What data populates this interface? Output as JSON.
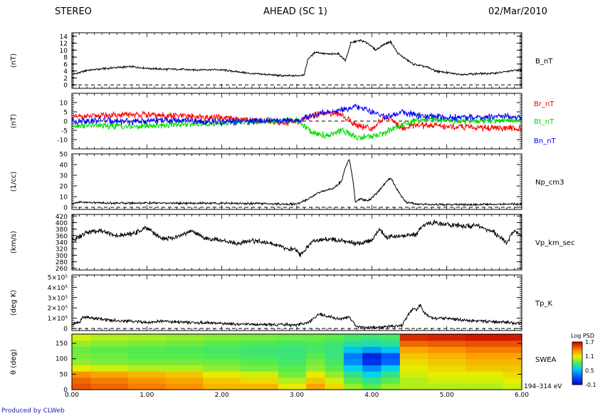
{
  "header": {
    "left": "STEREO",
    "center": "AHEAD (SC 1)",
    "right": "02/Mar/2010"
  },
  "footer": "Produced by CLWeb",
  "x_axis": {
    "ticks": [
      "0.00",
      "1.00",
      "2.00",
      "3.00",
      "4.00",
      "5.00",
      "6.00"
    ],
    "min": 0,
    "max": 6
  },
  "chart_data": [
    {
      "type": "line",
      "panel": "B",
      "ylabel": "(nT)",
      "ylim": [
        -1,
        15
      ],
      "yticks": [
        "0",
        "2",
        "4",
        "6",
        "8",
        "10",
        "12",
        "14"
      ],
      "ytick_values": [
        0,
        2,
        4,
        6,
        8,
        10,
        12,
        14
      ],
      "dashed_zero": true,
      "series": [
        {
          "name": "B_nT",
          "color": "#000000",
          "x": [
            0.0,
            0.1,
            0.2,
            0.4,
            0.6,
            0.8,
            1.0,
            1.2,
            1.4,
            1.6,
            1.8,
            2.0,
            2.2,
            2.4,
            2.6,
            2.8,
            3.0,
            3.1,
            3.15,
            3.25,
            3.35,
            3.45,
            3.55,
            3.65,
            3.72,
            3.78,
            3.85,
            3.95,
            4.05,
            4.15,
            4.25,
            4.35,
            4.45,
            4.55,
            4.65,
            4.75,
            4.85,
            5.0,
            5.2,
            5.4,
            5.6,
            5.8,
            6.0
          ],
          "values": [
            3.0,
            3.5,
            4.2,
            4.6,
            5.0,
            5.2,
            4.8,
            4.5,
            4.5,
            4.3,
            4.4,
            4.3,
            3.8,
            3.2,
            3.0,
            2.6,
            2.6,
            3.0,
            7.5,
            9.5,
            9.0,
            8.8,
            9.0,
            7.0,
            12.0,
            12.5,
            12.8,
            12.0,
            10.0,
            11.5,
            12.5,
            9.0,
            7.5,
            6.0,
            5.5,
            5.0,
            4.0,
            3.5,
            3.0,
            3.2,
            3.3,
            3.8,
            4.5
          ]
        }
      ]
    },
    {
      "type": "line",
      "panel": "Bvec",
      "ylabel": "(nT)",
      "ylim": [
        -15,
        15
      ],
      "yticks": [
        "-10",
        "-5",
        "0",
        "5",
        "10"
      ],
      "ytick_values": [
        -10,
        -5,
        0,
        5,
        10
      ],
      "dashed_zero": true,
      "series": [
        {
          "name": "Br_nT",
          "color": "#ff0000",
          "x": [
            0.0,
            0.4,
            0.8,
            1.2,
            1.6,
            2.0,
            2.4,
            2.8,
            3.0,
            3.2,
            3.4,
            3.6,
            3.8,
            4.0,
            4.2,
            4.4,
            4.6,
            4.8,
            5.0,
            5.4,
            5.8,
            6.0
          ],
          "values": [
            2.0,
            3.0,
            3.5,
            3.0,
            2.5,
            1.5,
            0.5,
            -0.5,
            -1.0,
            3.0,
            5.0,
            3.0,
            -2.0,
            -4.0,
            3.0,
            -4.0,
            -2.0,
            -2.5,
            -3.0,
            -3.5,
            -3.8,
            -4.0
          ]
        },
        {
          "name": "Bt_nT",
          "color": "#00dd00",
          "x": [
            0.0,
            0.4,
            0.8,
            1.2,
            1.6,
            2.0,
            2.4,
            2.8,
            3.0,
            3.2,
            3.4,
            3.6,
            3.8,
            4.0,
            4.2,
            4.4,
            4.6,
            4.8,
            5.0,
            5.4,
            5.8,
            6.0
          ],
          "values": [
            -2.0,
            -2.5,
            -3.0,
            -2.0,
            -1.5,
            -1.0,
            -0.5,
            0.0,
            0.5,
            -6.0,
            -8.0,
            -5.0,
            -9.0,
            -8.0,
            -6.0,
            -2.0,
            0.5,
            0.8,
            0.5,
            0.0,
            0.5,
            0.0
          ]
        },
        {
          "name": "Bn_nT",
          "color": "#0000ff",
          "x": [
            0.0,
            0.4,
            0.8,
            1.2,
            1.6,
            2.0,
            2.4,
            2.8,
            3.0,
            3.2,
            3.4,
            3.6,
            3.8,
            4.0,
            4.2,
            4.4,
            4.6,
            4.8,
            5.0,
            5.4,
            5.8,
            6.0
          ],
          "values": [
            0.0,
            0.5,
            -0.5,
            0.5,
            0.0,
            -0.5,
            0.0,
            0.5,
            0.0,
            3.0,
            5.0,
            6.0,
            8.0,
            5.0,
            2.0,
            5.0,
            3.0,
            2.5,
            2.0,
            2.0,
            2.5,
            2.0
          ]
        }
      ]
    },
    {
      "type": "line",
      "panel": "Np",
      "ylabel": "(1/cc)",
      "ylim": [
        -2,
        50
      ],
      "yticks": [
        "0",
        "10",
        "20",
        "30",
        "40",
        "50"
      ],
      "ytick_values": [
        0,
        10,
        20,
        30,
        40,
        50
      ],
      "dashed_zero": true,
      "series": [
        {
          "name": "Np_cm3",
          "color": "#000000",
          "x": [
            0.0,
            0.1,
            0.2,
            0.5,
            1.0,
            1.5,
            2.0,
            2.5,
            2.9,
            3.0,
            3.1,
            3.2,
            3.3,
            3.4,
            3.5,
            3.6,
            3.65,
            3.7,
            3.75,
            3.78,
            3.85,
            3.95,
            4.05,
            4.15,
            4.25,
            4.35,
            4.45,
            4.6,
            4.8,
            5.0,
            5.5,
            6.0
          ],
          "values": [
            3.0,
            5.0,
            4.5,
            4.0,
            4.0,
            3.8,
            3.8,
            3.5,
            3.0,
            3.0,
            6.0,
            10.0,
            14.0,
            16.0,
            18.0,
            25.0,
            38.0,
            45.0,
            25.0,
            5.0,
            8.0,
            6.0,
            12.0,
            20.0,
            28.0,
            15.0,
            5.0,
            3.0,
            2.5,
            2.5,
            2.8,
            3.0
          ]
        }
      ]
    },
    {
      "type": "line",
      "panel": "Vp",
      "ylabel": "(km/s)",
      "ylim": [
        255,
        425
      ],
      "yticks": [
        "260",
        "280",
        "300",
        "320",
        "340",
        "360",
        "380",
        "400",
        "420"
      ],
      "ytick_values": [
        260,
        280,
        300,
        320,
        340,
        360,
        380,
        400,
        420
      ],
      "dashed_zero": false,
      "series": [
        {
          "name": "Vp_km_sec",
          "color": "#000000",
          "x": [
            0.0,
            0.1,
            0.2,
            0.4,
            0.6,
            0.8,
            1.0,
            1.2,
            1.4,
            1.6,
            1.8,
            2.0,
            2.2,
            2.4,
            2.6,
            2.8,
            3.0,
            3.05,
            3.2,
            3.4,
            3.6,
            3.8,
            4.0,
            4.1,
            4.2,
            4.4,
            4.6,
            4.7,
            4.8,
            5.0,
            5.2,
            5.4,
            5.6,
            5.8,
            5.9,
            6.0
          ],
          "values": [
            345,
            355,
            370,
            375,
            360,
            365,
            385,
            350,
            355,
            375,
            350,
            345,
            335,
            345,
            340,
            325,
            315,
            300,
            340,
            350,
            345,
            335,
            345,
            380,
            355,
            360,
            365,
            395,
            400,
            395,
            390,
            390,
            375,
            340,
            375,
            360
          ]
        }
      ]
    },
    {
      "type": "line",
      "panel": "Tp",
      "ylabel": "(deg K)",
      "ylim": [
        -20000,
        520000
      ],
      "yticks": [
        "0",
        "1×10⁵",
        "2×10⁵",
        "3×10⁵",
        "4×10⁵",
        "5×10⁵"
      ],
      "ytick_values": [
        0,
        100000,
        200000,
        300000,
        400000,
        500000
      ],
      "dashed_zero": true,
      "series": [
        {
          "name": "Tp_K",
          "color": "#000000",
          "x": [
            0.0,
            0.1,
            0.15,
            0.3,
            0.5,
            0.8,
            1.0,
            1.2,
            1.5,
            1.8,
            2.0,
            2.3,
            2.6,
            2.9,
            3.1,
            3.2,
            3.3,
            3.4,
            3.5,
            3.6,
            3.7,
            3.75,
            3.8,
            3.9,
            4.0,
            4.2,
            4.4,
            4.5,
            4.55,
            4.6,
            4.65,
            4.7,
            4.8,
            5.0,
            5.2,
            5.5,
            5.8,
            6.0
          ],
          "values": [
            40000,
            60000,
            110000,
            100000,
            80000,
            70000,
            60000,
            70000,
            60000,
            55000,
            50000,
            40000,
            40000,
            35000,
            45000,
            80000,
            140000,
            120000,
            100000,
            90000,
            110000,
            60000,
            15000,
            10000,
            10000,
            15000,
            30000,
            150000,
            200000,
            180000,
            230000,
            150000,
            100000,
            100000,
            80000,
            70000,
            60000,
            50000
          ]
        }
      ]
    },
    {
      "type": "heatmap",
      "panel": "SWEA",
      "ylabel": "θ (deg)",
      "ylim": [
        0,
        180
      ],
      "yticks": [
        "0",
        "50",
        "100",
        "150"
      ],
      "ytick_values": [
        0,
        50,
        100,
        150
      ],
      "label": "SWEA",
      "energy_label": "194–314 eV",
      "colorbar": {
        "title": "Log PSD",
        "min": -0.1,
        "max": 1.7,
        "ticks": [
          "1.7",
          "1.1",
          "0.5",
          "-0.1"
        ],
        "tick_values": [
          1.7,
          1.1,
          0.5,
          -0.1
        ]
      },
      "x": [
        0.0,
        0.5,
        1.0,
        1.5,
        2.0,
        2.5,
        3.0,
        3.25,
        3.5,
        3.75,
        4.0,
        4.25,
        4.5,
        5.0,
        5.5,
        6.0
      ],
      "theta": [
        10,
        30,
        50,
        70,
        90,
        110,
        130,
        150,
        170
      ],
      "values": [
        [
          1.5,
          1.45,
          1.4,
          1.35,
          1.25,
          1.25,
          1.1,
          1.3,
          1.15,
          0.95,
          0.85,
          0.95,
          1.0,
          1.0,
          1.0,
          1.05
        ],
        [
          1.45,
          1.4,
          1.35,
          1.3,
          1.2,
          1.15,
          1.0,
          1.2,
          1.05,
          0.85,
          0.75,
          0.85,
          1.0,
          1.05,
          1.05,
          1.1
        ],
        [
          1.35,
          1.3,
          1.25,
          1.2,
          1.1,
          1.05,
          0.9,
          1.1,
          0.95,
          0.75,
          0.6,
          0.75,
          1.05,
          1.1,
          1.1,
          1.15
        ],
        [
          1.1,
          1.05,
          1.0,
          1.0,
          0.95,
          0.9,
          0.85,
          0.95,
          0.85,
          0.6,
          0.4,
          0.6,
          1.1,
          1.15,
          1.2,
          1.2
        ],
        [
          0.95,
          0.92,
          0.9,
          0.9,
          0.88,
          0.85,
          0.8,
          0.9,
          0.8,
          0.4,
          0.1,
          0.3,
          1.15,
          1.2,
          1.25,
          1.25
        ],
        [
          0.9,
          0.88,
          0.85,
          0.85,
          0.83,
          0.8,
          0.78,
          0.85,
          0.78,
          0.35,
          0.05,
          0.25,
          1.2,
          1.25,
          1.3,
          1.3
        ],
        [
          0.88,
          0.86,
          0.84,
          0.82,
          0.8,
          0.78,
          0.76,
          0.8,
          0.76,
          0.55,
          0.45,
          0.55,
          1.3,
          1.35,
          1.4,
          1.4
        ],
        [
          0.95,
          0.92,
          0.9,
          0.88,
          0.85,
          0.82,
          0.8,
          0.82,
          0.78,
          0.7,
          0.68,
          0.72,
          1.45,
          1.48,
          1.5,
          1.5
        ],
        [
          1.05,
          1.0,
          0.98,
          0.95,
          0.92,
          0.9,
          0.88,
          0.88,
          0.85,
          0.8,
          0.78,
          0.8,
          1.6,
          1.62,
          1.65,
          1.65
        ]
      ]
    }
  ]
}
